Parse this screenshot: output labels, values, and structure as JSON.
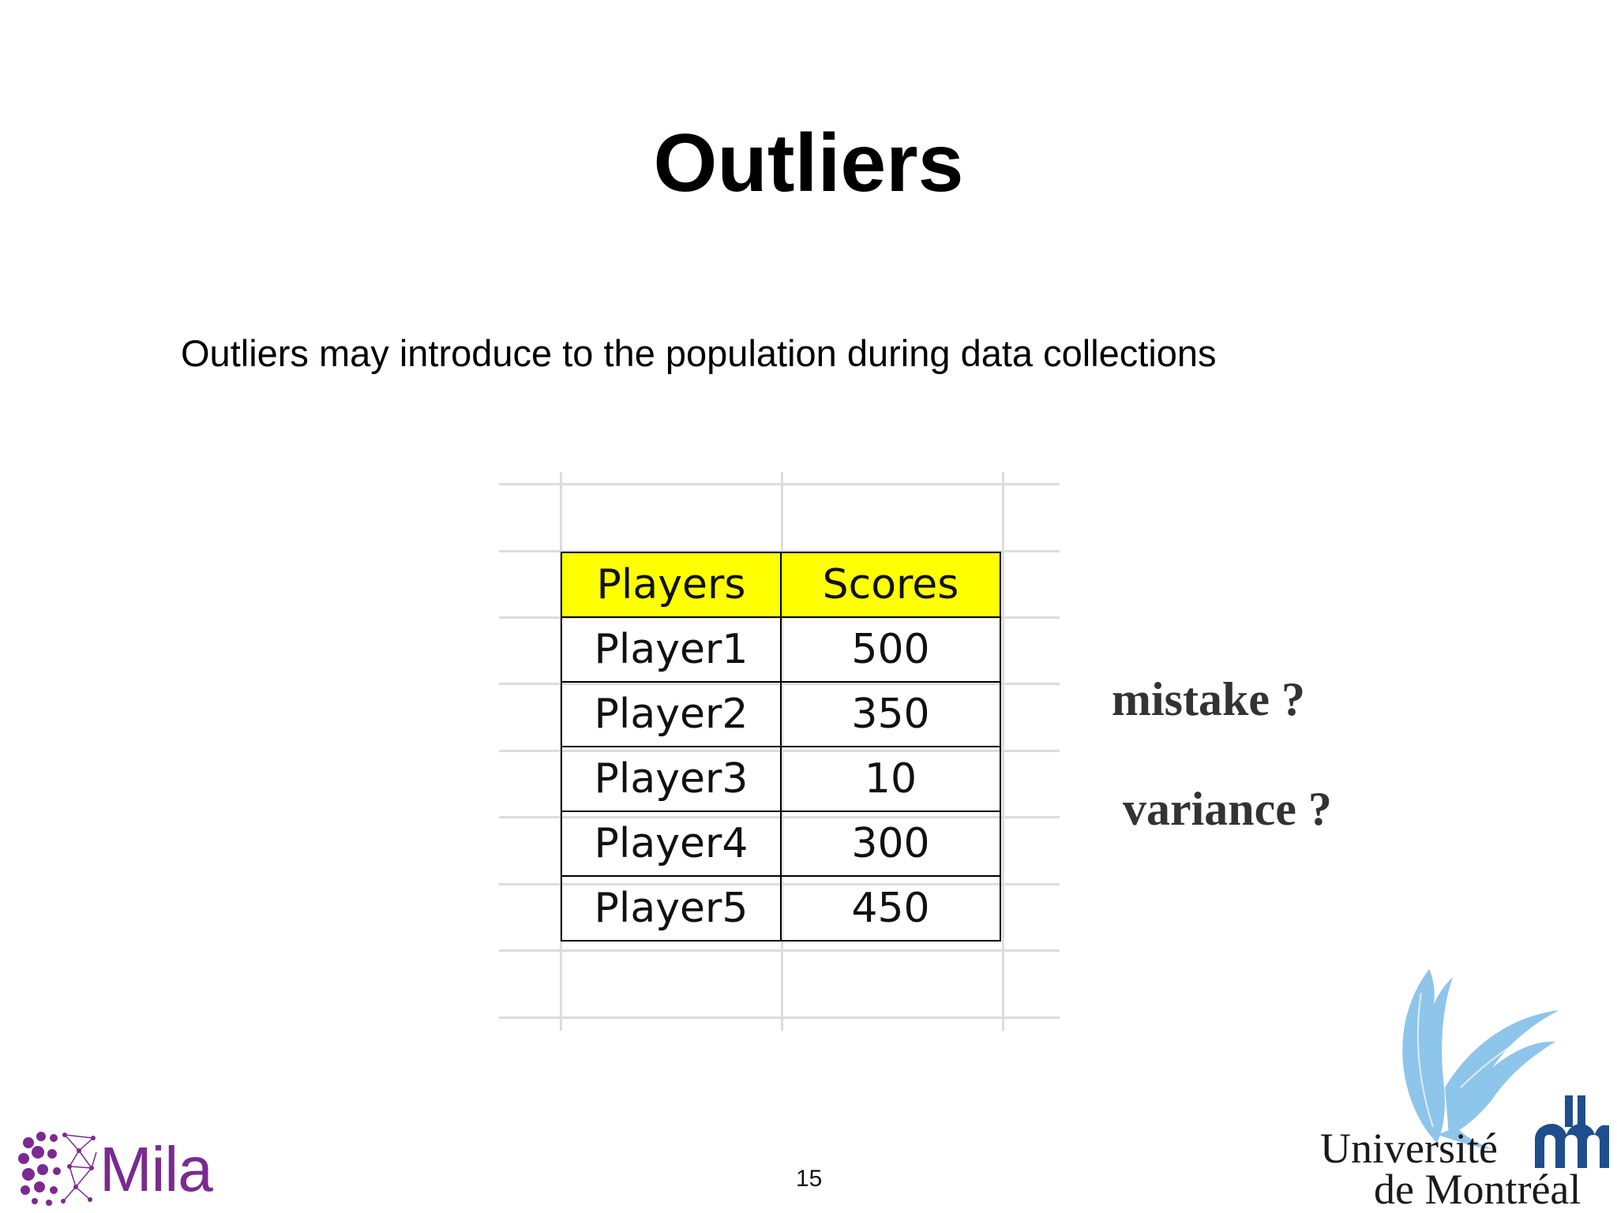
{
  "slide": {
    "title": "Outliers",
    "subtitle": "Outliers may introduce to the population during data collections",
    "page_number": "15"
  },
  "table": {
    "headers": [
      "Players",
      "Scores"
    ],
    "rows": [
      [
        "Player1",
        "500"
      ],
      [
        "Player2",
        "350"
      ],
      [
        "Player3",
        "10"
      ],
      [
        "Player4",
        "300"
      ],
      [
        "Player5",
        "450"
      ]
    ],
    "header_color": "#ffff00"
  },
  "annotations": {
    "mistake": "mistake ?",
    "variance": "variance ?"
  },
  "logos": {
    "mila": "Mila",
    "udem_line1": "Université",
    "udem_line2": "de Montréal",
    "mila_color": "#7b2a8f",
    "udem_bird_color": "#8ec5ea"
  }
}
